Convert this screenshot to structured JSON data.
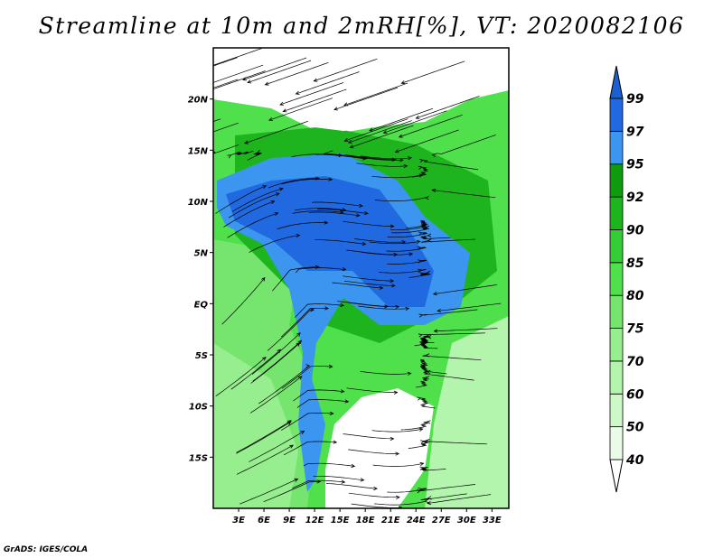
{
  "title": "Streamline at 10m and 2mRH[%], VT: 2020082106",
  "credit": "GrADS: IGES/COLA",
  "map": {
    "lon_range": [
      0,
      35
    ],
    "lat_range": [
      -20,
      25
    ],
    "lon_ticks": [
      {
        "value": 3,
        "label": "3E"
      },
      {
        "value": 6,
        "label": "6E"
      },
      {
        "value": 9,
        "label": "9E"
      },
      {
        "value": 12,
        "label": "12E"
      },
      {
        "value": 15,
        "label": "15E"
      },
      {
        "value": 18,
        "label": "18E"
      },
      {
        "value": 21,
        "label": "21E"
      },
      {
        "value": 24,
        "label": "24E"
      },
      {
        "value": 27,
        "label": "27E"
      },
      {
        "value": 30,
        "label": "30E"
      },
      {
        "value": 33,
        "label": "33E"
      }
    ],
    "lat_ticks": [
      {
        "value": 20,
        "label": "20N"
      },
      {
        "value": 15,
        "label": "15N"
      },
      {
        "value": 10,
        "label": "10N"
      },
      {
        "value": 5,
        "label": "5N"
      },
      {
        "value": 0,
        "label": "EQ"
      },
      {
        "value": -5,
        "label": "5S"
      },
      {
        "value": -10,
        "label": "10S"
      },
      {
        "value": -15,
        "label": "15S"
      }
    ]
  },
  "colorbar": {
    "levels": [
      "40",
      "50",
      "60",
      "70",
      "75",
      "80",
      "85",
      "90",
      "92",
      "95",
      "97",
      "99"
    ],
    "colors": [
      "#e8fce6",
      "#cdf9c8",
      "#b3f5ad",
      "#96ee8f",
      "#76e56e",
      "#4fe04b",
      "#36cc36",
      "#1eb41e",
      "#0e9b0e",
      "#3c96f0",
      "#2069e0",
      "#1c5fd0"
    ],
    "under_color": "#ffffff",
    "over_color": "#1c5fd0"
  }
}
